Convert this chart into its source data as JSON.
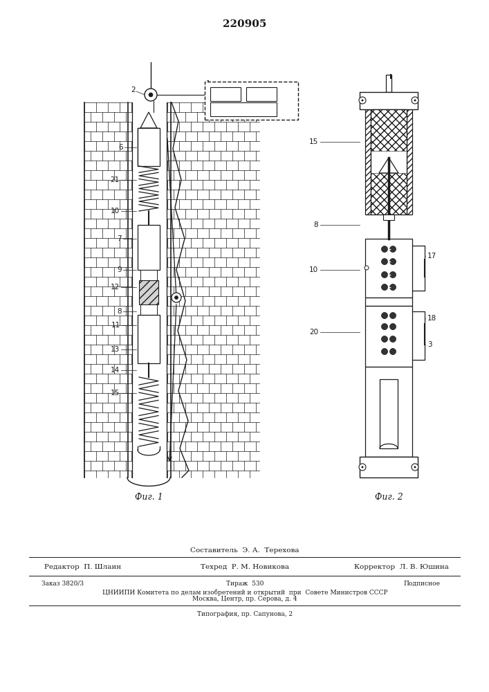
{
  "title": "220905",
  "fig1_caption": "Фиг. 1",
  "fig2_caption": "Фиг. 2",
  "footer_sestavitel": "Составитель  Э. А.  Терехова",
  "footer_redaktor": "Редактор  П. Шлаин",
  "footer_tehred": "Техред  Р. М. Новикова",
  "footer_korrektor": "Корректор  Л. В. Юшина",
  "footer_zakaz": "Заказ 3820/3",
  "footer_tirazh": "Тираж  530",
  "footer_podpisnoe": "Подписное",
  "footer_cniipn": "ЦНИИПИ Комитета по делам изобретений и открытий  при  Совете Министров СССР",
  "footer_moskva": "Москва, Центр, пр. Серова, д. 4",
  "footer_tipografia": "Типография, пр. Сапунова, 2",
  "bg_color": "#ffffff",
  "line_color": "#1a1a1a"
}
